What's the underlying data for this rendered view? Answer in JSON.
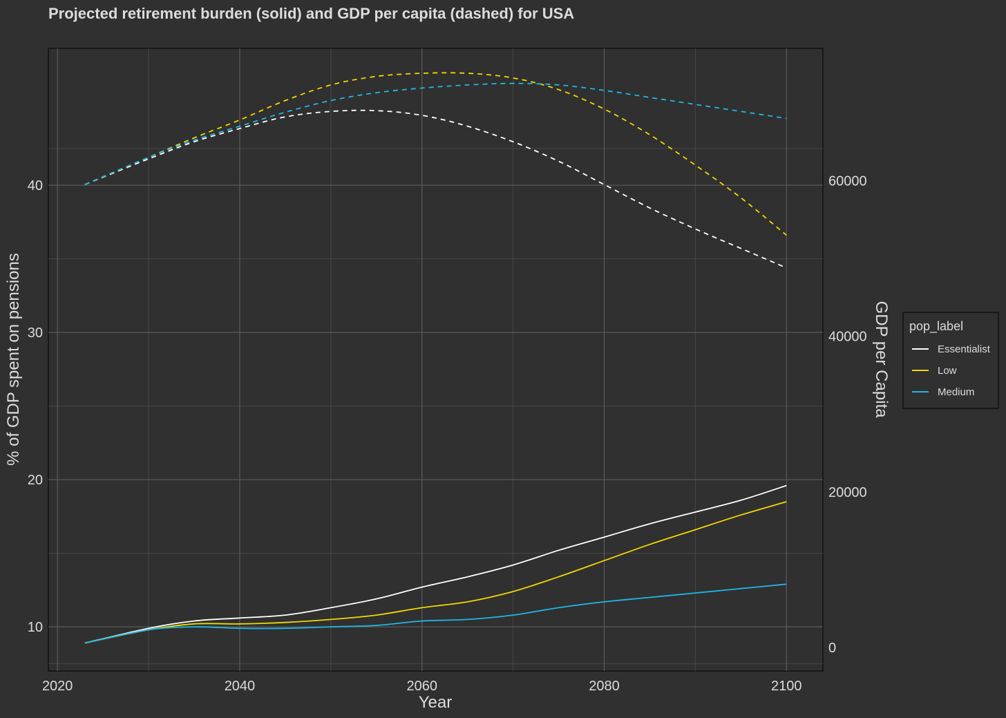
{
  "chart_data": {
    "type": "line",
    "title": "Projected retirement burden (solid) and GDP per capita (dashed) for USA",
    "xlabel": "Year",
    "ylabel_left": "% of GDP spent on pensions",
    "ylabel_right": "GDP per Capita",
    "xlim": [
      2019,
      2104
    ],
    "ylim_left": [
      7,
      49.3
    ],
    "ylim_right": [
      -3000,
      77000
    ],
    "x_ticks": [
      2020,
      2040,
      2060,
      2080,
      2100
    ],
    "y_left_ticks": [
      10,
      20,
      30,
      40
    ],
    "y_right_ticks": [
      0,
      20000,
      40000,
      60000
    ],
    "grid": true,
    "legend": {
      "title": "pop_label",
      "position": "right"
    },
    "colors": {
      "Essentialist": "#ffffff",
      "Low": "#f5d800",
      "Medium": "#1eb8e8"
    },
    "x": [
      2023,
      2030,
      2035,
      2040,
      2045,
      2050,
      2055,
      2060,
      2065,
      2070,
      2075,
      2080,
      2085,
      2090,
      2095,
      2100
    ],
    "pension_series": [
      {
        "name": "Essentialist",
        "axis": "left",
        "style": "solid",
        "values": [
          8.9,
          9.9,
          10.4,
          10.6,
          10.8,
          11.3,
          11.9,
          12.7,
          13.4,
          14.2,
          15.2,
          16.1,
          17.0,
          17.8,
          18.6,
          19.6
        ]
      },
      {
        "name": "Low",
        "axis": "left",
        "style": "solid",
        "values": [
          8.9,
          9.8,
          10.2,
          10.2,
          10.3,
          10.5,
          10.8,
          11.3,
          11.7,
          12.4,
          13.4,
          14.5,
          15.6,
          16.6,
          17.6,
          18.5
        ]
      },
      {
        "name": "Medium",
        "axis": "left",
        "style": "solid",
        "values": [
          8.9,
          9.8,
          10.0,
          9.9,
          9.9,
          10.0,
          10.1,
          10.4,
          10.5,
          10.8,
          11.3,
          11.7,
          12.0,
          12.3,
          12.6,
          12.9
        ]
      }
    ],
    "gdp_series": [
      {
        "name": "Essentialist",
        "axis": "right",
        "style": "dashed",
        "values": [
          59500,
          62800,
          65000,
          66700,
          68200,
          68900,
          69000,
          68400,
          67000,
          65000,
          62500,
          59500,
          56500,
          53800,
          51300,
          48800
        ]
      },
      {
        "name": "Low",
        "axis": "right",
        "style": "dashed",
        "values": [
          59500,
          63000,
          65500,
          67800,
          70300,
          72300,
          73400,
          73800,
          73800,
          73200,
          71700,
          69200,
          65900,
          62000,
          57800,
          53000
        ]
      },
      {
        "name": "Medium",
        "axis": "right",
        "style": "dashed",
        "values": [
          59500,
          63000,
          65200,
          67000,
          68800,
          70300,
          71300,
          71900,
          72300,
          72500,
          72300,
          71600,
          70700,
          69800,
          68900,
          68000
        ]
      }
    ]
  }
}
